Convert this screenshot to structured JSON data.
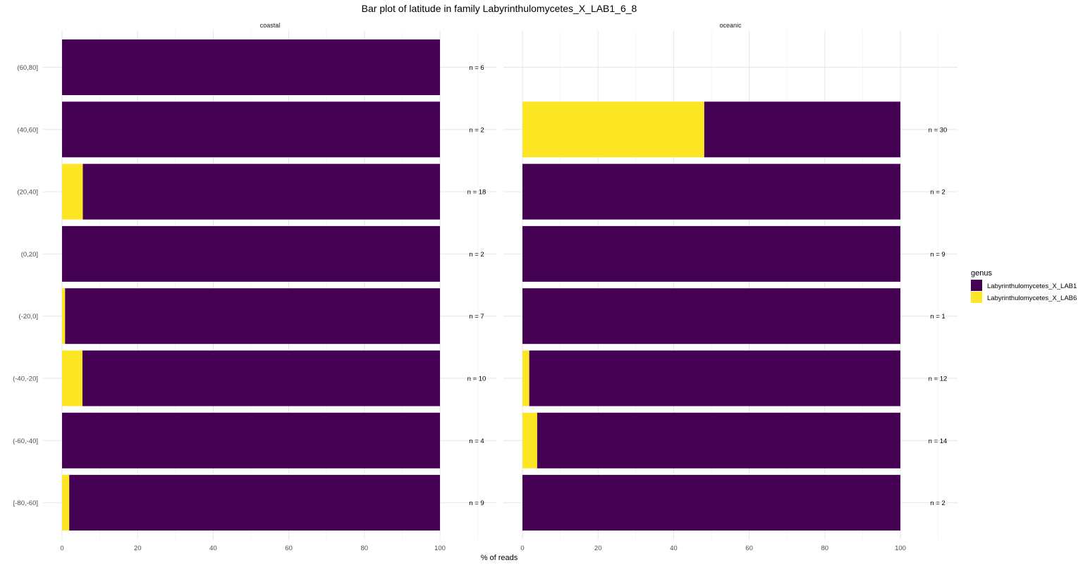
{
  "chart_data": {
    "type": "bar",
    "orientation": "horizontal",
    "stacked": true,
    "title": "Bar plot of latitude in family Labyrinthulomycetes_X_LAB1_6_8",
    "xlabel": "% of reads",
    "ylabel": "",
    "xlim": [
      0,
      100
    ],
    "x_ticks": [
      "0",
      "20",
      "40",
      "60",
      "80",
      "100"
    ],
    "grid": true,
    "categories": [
      "(60,80]",
      "(40,60]",
      "(20,40]",
      "(0,20]",
      "(-20,0]",
      "(-40,-20]",
      "(-60,-40]",
      "[-80,-60]"
    ],
    "legend": {
      "title": "genus",
      "position": "right",
      "entries": [
        {
          "name": "Labyrinthulomycetes_X_LAB1",
          "color": "#440154"
        },
        {
          "name": "Labyrinthulomycetes_X_LAB6",
          "color": "#FDE725"
        }
      ]
    },
    "facets": [
      {
        "name": "coastal",
        "n_labels": [
          "n = 6",
          "n = 2",
          "n = 18",
          "n = 2",
          "n = 7",
          "n = 10",
          "n = 4",
          "n = 9"
        ],
        "series": [
          {
            "name": "Labyrinthulomycetes_X_LAB6",
            "values": [
              0,
              0,
              5.5,
              0,
              0.8,
              5.4,
              0,
              1.9
            ]
          },
          {
            "name": "Labyrinthulomycetes_X_LAB1",
            "values": [
              100,
              100,
              94.5,
              100,
              99.2,
              94.6,
              100,
              98.1
            ]
          }
        ]
      },
      {
        "name": "oceanic",
        "n_labels": [
          "",
          "n = 30",
          "n = 2",
          "n = 9",
          "n = 1",
          "n = 12",
          "n = 14",
          "n = 2"
        ],
        "series": [
          {
            "name": "Labyrinthulomycetes_X_LAB6",
            "values": [
              null,
              48.1,
              0,
              0,
              0,
              1.8,
              3.9,
              0
            ]
          },
          {
            "name": "Labyrinthulomycetes_X_LAB1",
            "values": [
              null,
              51.9,
              100,
              100,
              100,
              98.2,
              96.1,
              100
            ]
          }
        ]
      }
    ]
  }
}
